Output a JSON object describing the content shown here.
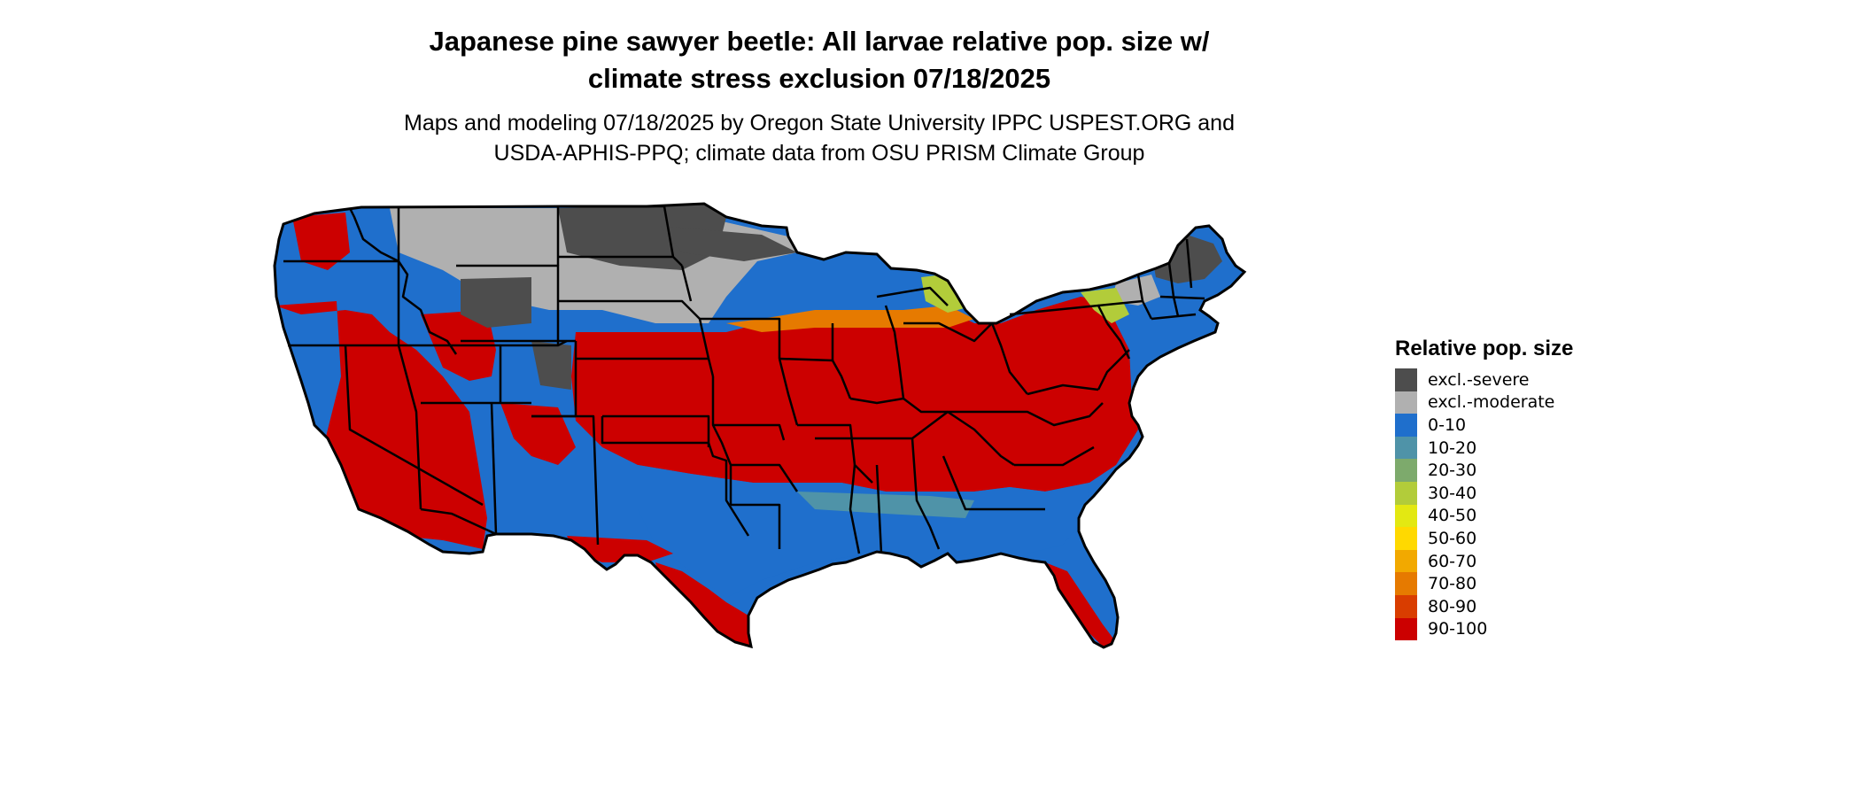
{
  "title_line1": "Japanese pine sawyer beetle: All larvae relative pop. size w/",
  "title_line2": "climate stress exclusion 07/18/2025",
  "subtitle_line1": "Maps and modeling 07/18/2025 by Oregon State University IPPC USPEST.ORG and",
  "subtitle_line2": "USDA-APHIS-PPQ; climate data from OSU PRISM Climate Group",
  "legend": {
    "title": "Relative pop. size",
    "items": [
      {
        "label": "excl.-severe",
        "color": "#4d4d4d"
      },
      {
        "label": "excl.-moderate",
        "color": "#b0b0b0"
      },
      {
        "label": "0-10",
        "color": "#1f6fcc"
      },
      {
        "label": "10-20",
        "color": "#4f93a8"
      },
      {
        "label": "20-30",
        "color": "#7daa6c"
      },
      {
        "label": "30-40",
        "color": "#b2cc3a"
      },
      {
        "label": "40-50",
        "color": "#e3e812"
      },
      {
        "label": "50-60",
        "color": "#ffd900"
      },
      {
        "label": "60-70",
        "color": "#f2a900"
      },
      {
        "label": "70-80",
        "color": "#e67a00"
      },
      {
        "label": "80-90",
        "color": "#d93d00"
      },
      {
        "label": "90-100",
        "color": "#cc0000"
      }
    ]
  }
}
